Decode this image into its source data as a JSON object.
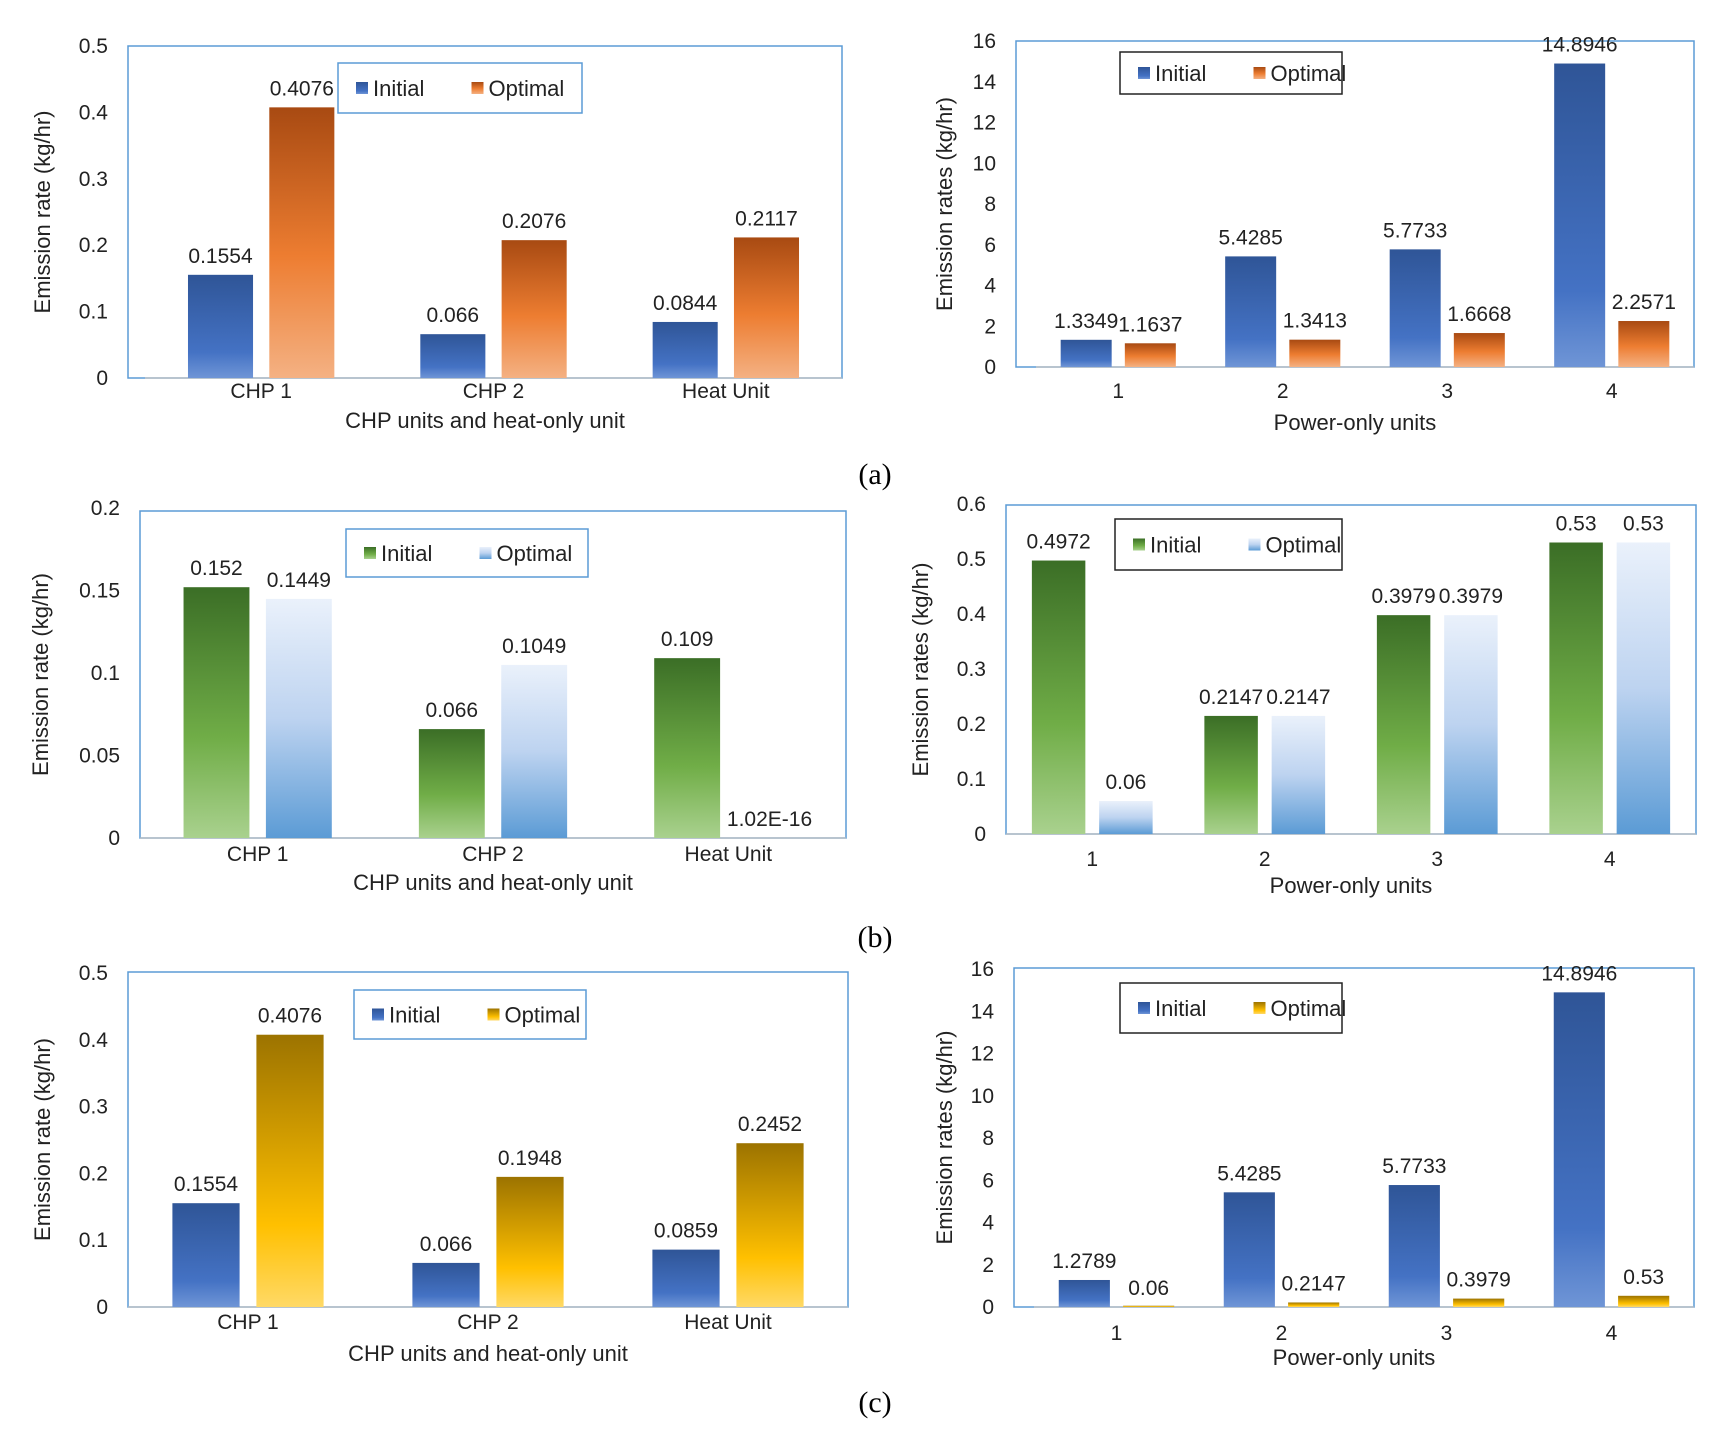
{
  "panel_labels": {
    "a": "(a)",
    "b": "(b)",
    "c": "(c)"
  },
  "colors": {
    "blue": "#4472c4",
    "orange": "#ed7d31",
    "green": "#5b9b3c",
    "lightblue": "#8fb4e3",
    "gold": "#ffc000",
    "frame": "#5b9bd5"
  },
  "chart_data": [
    {
      "panel": "a",
      "position": "left",
      "type": "bar",
      "categories": [
        "CHP 1",
        "CHP 2",
        "Heat Unit"
      ],
      "series": [
        {
          "name": "Initial",
          "values": [
            0.1554,
            0.066,
            0.0844
          ],
          "labels": [
            "0.1554",
            "0.066",
            "0.0844"
          ]
        },
        {
          "name": "Optimal",
          "values": [
            0.4076,
            0.2076,
            0.2117
          ],
          "labels": [
            "0.4076",
            "0.2076",
            "0.2117"
          ]
        }
      ],
      "xlabel": "CHP units and heat-only unit",
      "ylabel": "Emission rate (kg/hr)",
      "ylim": [
        0,
        0.5
      ],
      "yticks": [
        "0",
        "0.1",
        "0.2",
        "0.3",
        "0.4",
        "0.5"
      ],
      "legend": "top-center",
      "grid": false
    },
    {
      "panel": "a",
      "position": "right",
      "type": "bar",
      "categories": [
        "1",
        "2",
        "3",
        "4"
      ],
      "series": [
        {
          "name": "Initial",
          "values": [
            1.3349,
            5.4285,
            5.7733,
            14.8946
          ],
          "labels": [
            "1.3349",
            "5.4285",
            "5.7733",
            "14.8946"
          ]
        },
        {
          "name": "Optimal",
          "values": [
            1.1637,
            1.3413,
            1.6668,
            2.2571
          ],
          "labels": [
            "1.1637",
            "1.3413",
            "1.6668",
            "2.2571"
          ]
        }
      ],
      "xlabel": "Power-only units",
      "ylabel": "Emission rates (kg/hr)",
      "ylim": [
        0,
        16
      ],
      "yticks": [
        "0",
        "2",
        "4",
        "6",
        "8",
        "10",
        "12",
        "14",
        "16"
      ],
      "legend": "top-left",
      "grid": false
    },
    {
      "panel": "b",
      "position": "left",
      "type": "bar",
      "categories": [
        "CHP 1",
        "CHP 2",
        "Heat Unit"
      ],
      "series": [
        {
          "name": "Initial",
          "values": [
            0.152,
            0.066,
            0.109
          ],
          "labels": [
            "0.152",
            "0.066",
            "0.109"
          ]
        },
        {
          "name": "Optimal",
          "values": [
            0.1449,
            0.1049,
            1.02e-16
          ],
          "labels": [
            "0.1449",
            "0.1049",
            "1.02E-16"
          ]
        }
      ],
      "xlabel": "CHP units and heat-only unit",
      "ylabel": "Emission rate (kg/hr)",
      "ylim": [
        0,
        0.2
      ],
      "yticks": [
        "0",
        "0.05",
        "0.1",
        "0.15",
        "0.2"
      ],
      "legend": "top-center",
      "grid": false
    },
    {
      "panel": "b",
      "position": "right",
      "type": "bar",
      "categories": [
        "1",
        "2",
        "3",
        "4"
      ],
      "series": [
        {
          "name": "Initial",
          "values": [
            0.4972,
            0.2147,
            0.3979,
            0.53
          ],
          "labels": [
            "0.4972",
            "0.2147",
            "0.3979",
            "0.53"
          ]
        },
        {
          "name": "Optimal",
          "values": [
            0.06,
            0.2147,
            0.3979,
            0.53
          ],
          "labels": [
            "0.06",
            "0.2147",
            "0.3979",
            "0.53"
          ]
        }
      ],
      "xlabel": "Power-only units",
      "ylabel": "Emission rates (kg/hr)",
      "ylim": [
        0,
        0.6
      ],
      "yticks": [
        "0",
        "0.1",
        "0.2",
        "0.3",
        "0.4",
        "0.5",
        "0.6"
      ],
      "legend": "top-left",
      "grid": false
    },
    {
      "panel": "c",
      "position": "left",
      "type": "bar",
      "categories": [
        "CHP 1",
        "CHP 2",
        "Heat Unit"
      ],
      "series": [
        {
          "name": "Initial",
          "values": [
            0.1554,
            0.066,
            0.0859
          ],
          "labels": [
            "0.1554",
            "0.066",
            "0.0859"
          ]
        },
        {
          "name": "Optimal",
          "values": [
            0.4076,
            0.1948,
            0.2452
          ],
          "labels": [
            "0.4076",
            "0.1948",
            "0.2452"
          ]
        }
      ],
      "xlabel": "CHP units and heat-only unit",
      "ylabel": "Emission rate (kg/hr)",
      "ylim": [
        0,
        0.5
      ],
      "yticks": [
        "0",
        "0.1",
        "0.2",
        "0.3",
        "0.4",
        "0.5"
      ],
      "legend": "top-center",
      "grid": false
    },
    {
      "panel": "c",
      "position": "right",
      "type": "bar",
      "categories": [
        "1",
        "2",
        "3",
        "4"
      ],
      "series": [
        {
          "name": "Initial",
          "values": [
            1.2789,
            5.4285,
            5.7733,
            14.8946
          ],
          "labels": [
            "1.2789",
            "5.4285",
            "5.7733",
            "14.8946"
          ]
        },
        {
          "name": "Optimal",
          "values": [
            0.06,
            0.2147,
            0.3979,
            0.53
          ],
          "labels": [
            "0.06",
            "0.2147",
            "0.3979",
            "0.53"
          ]
        }
      ],
      "xlabel": "Power-only units",
      "ylabel": "Emission rates (kg/hr)",
      "ylim": [
        0,
        16
      ],
      "yticks": [
        "0",
        "2",
        "4",
        "6",
        "8",
        "10",
        "12",
        "14",
        "16"
      ],
      "legend": "top-left",
      "grid": false
    }
  ]
}
